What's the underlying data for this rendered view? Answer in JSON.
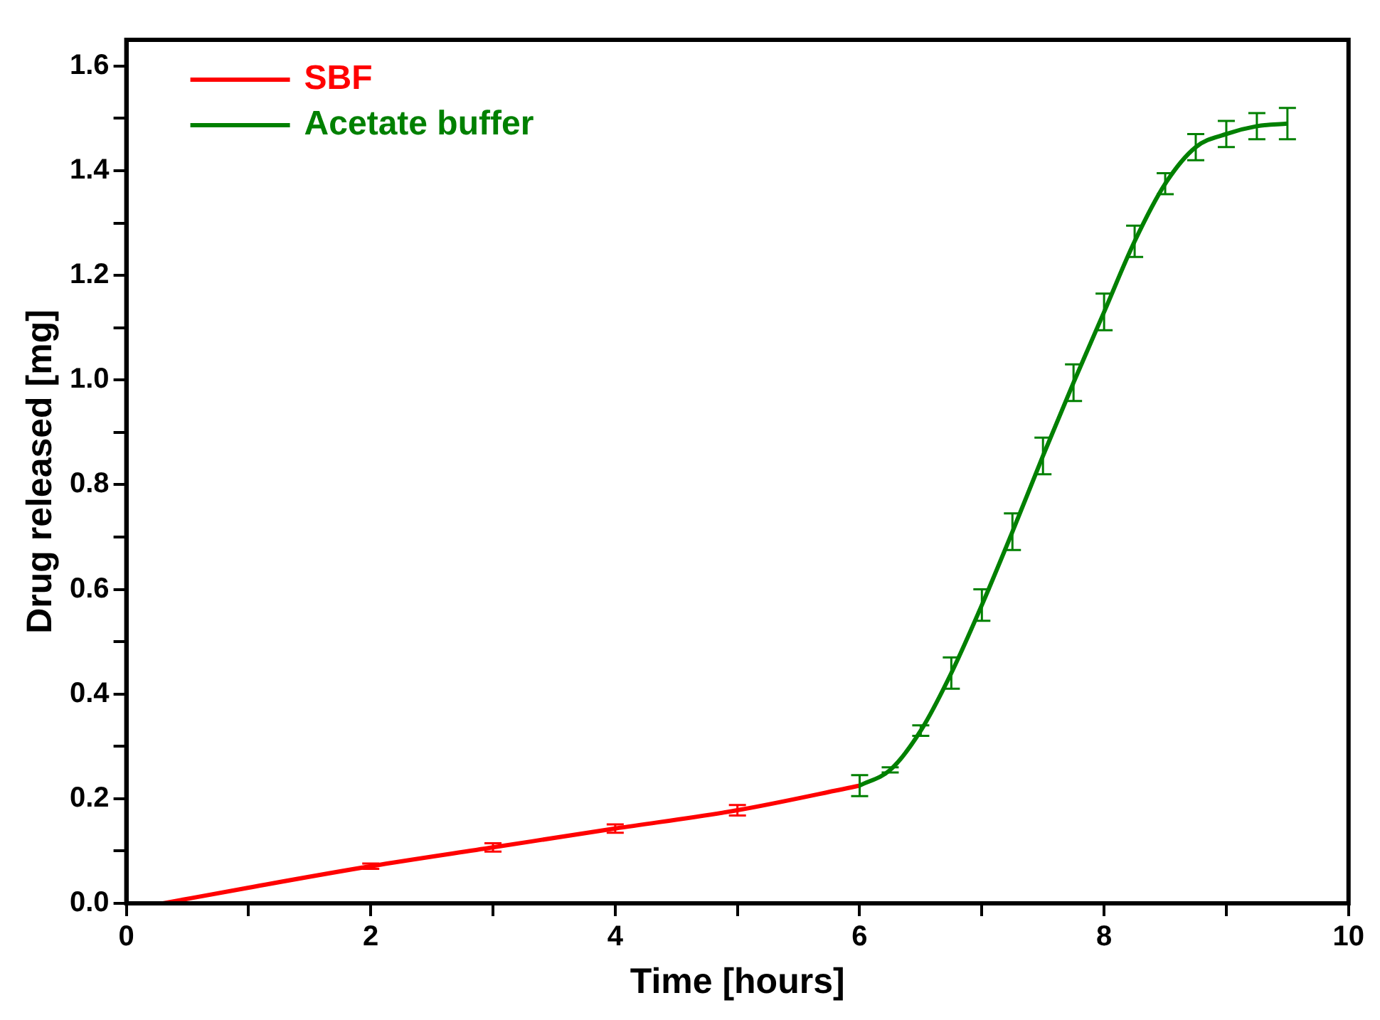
{
  "chart_data": {
    "type": "line",
    "xlabel": "Time [hours]",
    "ylabel": "Drug released [mg]",
    "xlim": [
      0,
      10
    ],
    "ylim": [
      0,
      1.65
    ],
    "xticks": [
      0,
      {
        "value": 1,
        "label": null
      },
      2,
      {
        "value": 3,
        "label": null
      },
      4,
      {
        "value": 5,
        "label": null
      },
      6,
      {
        "value": 7,
        "label": null
      },
      8,
      {
        "value": 9,
        "label": null
      },
      10
    ],
    "yticks": [
      {
        "value": 0,
        "label": "0.0"
      },
      {
        "value": 0.1,
        "label": null
      },
      0.2,
      {
        "value": 0.3,
        "label": null
      },
      0.4,
      {
        "value": 0.5,
        "label": null
      },
      0.6,
      {
        "value": 0.7,
        "label": null
      },
      0.8,
      {
        "value": 0.9,
        "label": null
      },
      {
        "value": 1,
        "label": "1.0"
      },
      {
        "value": 1.1,
        "label": null
      },
      1.2,
      {
        "value": 1.3,
        "label": null
      },
      1.4,
      {
        "value": 1.5,
        "label": null
      },
      1.6
    ],
    "grid": false,
    "legend": "top left",
    "marker": "none",
    "line_style": "solid",
    "series": [
      {
        "name": "SBF",
        "color": "#ff0000",
        "x": [
          0.3,
          1,
          2,
          3,
          4,
          5,
          6
        ],
        "values": [
          0,
          0.03,
          0.071,
          0.107,
          0.143,
          0.178,
          0.225
        ],
        "errors": [
          null,
          null,
          0.005,
          0.008,
          0.008,
          0.01,
          null
        ]
      },
      {
        "name": "Acetate buffer",
        "color": "#008000",
        "x": [
          6,
          6.25,
          6.5,
          6.75,
          7,
          7.25,
          7.5,
          7.75,
          8,
          8.25,
          8.5,
          8.75,
          9,
          9.25,
          9.5
        ],
        "values": [
          0.225,
          0.255,
          0.33,
          0.44,
          0.57,
          0.71,
          0.855,
          0.995,
          1.13,
          1.265,
          1.375,
          1.445,
          1.47,
          1.485,
          1.49
        ],
        "errors": [
          0.02,
          0.005,
          0.01,
          0.03,
          0.03,
          0.035,
          0.035,
          0.035,
          0.035,
          0.03,
          0.02,
          0.025,
          0.025,
          0.025,
          0.03
        ]
      }
    ]
  }
}
